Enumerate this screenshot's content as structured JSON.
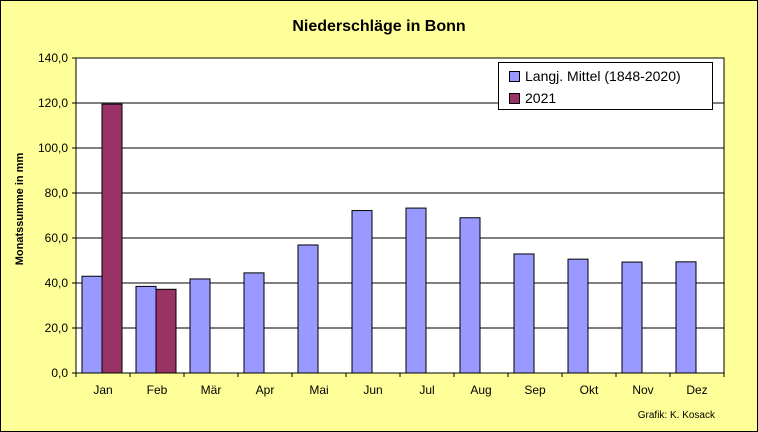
{
  "chart_data": {
    "type": "bar",
    "title": "Niederschläge in Bonn",
    "ylabel": "Monatssumme in mm",
    "xlabel": "",
    "credit": "Grafik:  K. Kosack",
    "categories": [
      "Jan",
      "Feb",
      "Mär",
      "Apr",
      "Mai",
      "Jun",
      "Jul",
      "Aug",
      "Sep",
      "Okt",
      "Nov",
      "Dez"
    ],
    "ylim": [
      0,
      140
    ],
    "yticks": [
      "0,0",
      "20,0",
      "40,0",
      "60,0",
      "80,0",
      "100,0",
      "120,0",
      "140,0"
    ],
    "grid": true,
    "legend_position": "top-right",
    "series": [
      {
        "name": "Langj. Mittel (1848-2020)",
        "color": "#9999ff",
        "values": [
          43.0,
          38.5,
          41.8,
          44.5,
          56.9,
          72.2,
          73.3,
          69.0,
          52.9,
          50.6,
          49.3,
          49.4
        ]
      },
      {
        "name": "2021",
        "color": "#993366",
        "values": [
          119.5,
          37.2,
          null,
          null,
          null,
          null,
          null,
          null,
          null,
          null,
          null,
          null
        ]
      }
    ]
  }
}
